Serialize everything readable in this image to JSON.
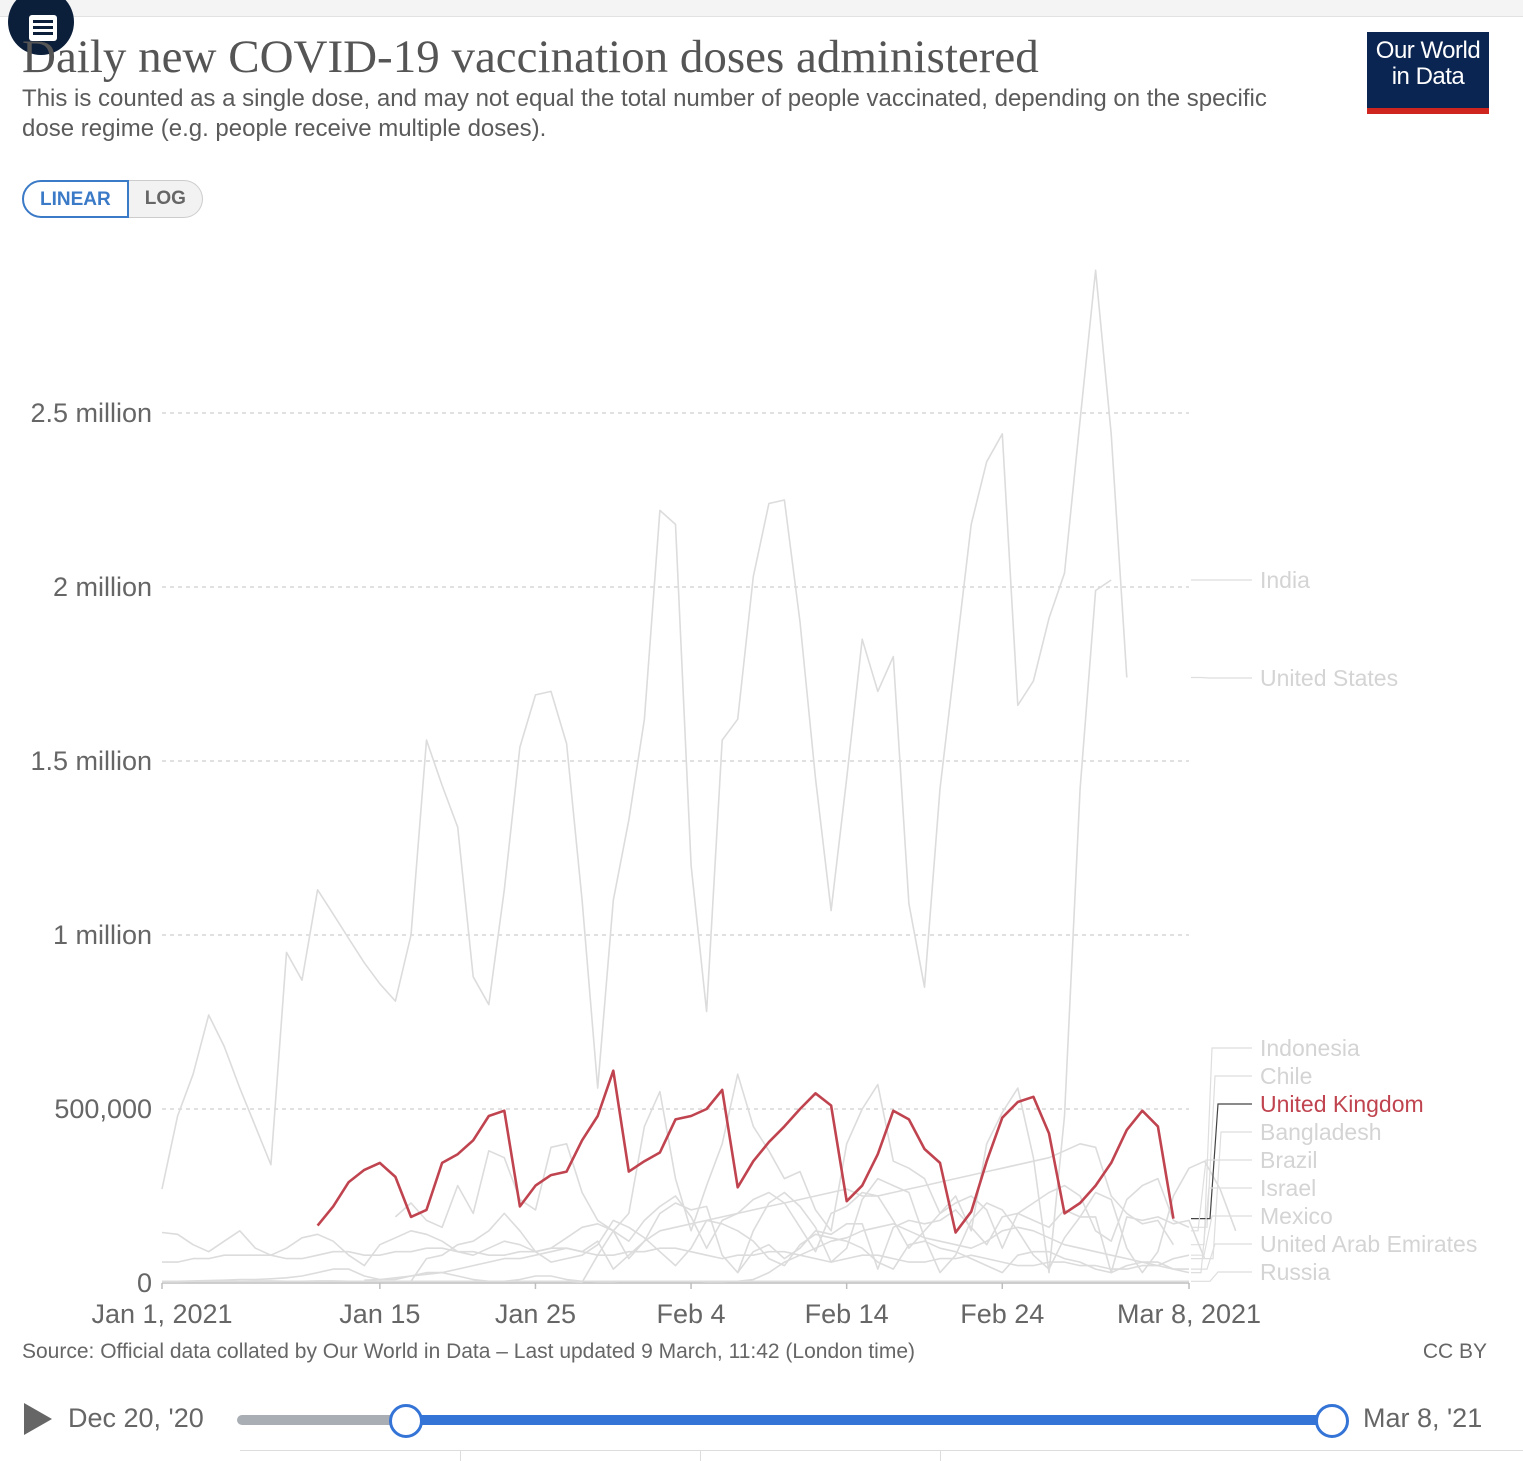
{
  "header": {
    "title": "Daily new COVID-19 vaccination doses administered",
    "subtitle": "This is counted as a single dose, and may not equal the total number of people vaccinated, depending on the specific dose regime (e.g. people receive multiple doses).",
    "logo_line1": "Our World",
    "logo_line2": "in Data",
    "toc_icon": "list-icon"
  },
  "scale_toggle": {
    "linear": "LINEAR",
    "log": "LOG",
    "selected": "LINEAR"
  },
  "footer": {
    "source": "Source: Official data collated by Our World in Data – Last updated 9 March, 11:42 (London time)",
    "license": "CC BY"
  },
  "timeline": {
    "start_label": "Dec 20, '20",
    "end_label": "Mar 8, '21",
    "play_icon": "play-icon",
    "selection_start": "Jan 1, 2021",
    "selection_end": "Mar 8, 2021"
  },
  "colors": {
    "highlight": "#c0444f",
    "muted": "#dcdcdc",
    "label_muted": "#d4d4d4",
    "accent": "#3474d6"
  },
  "chart_data": {
    "type": "line",
    "title": "Daily new COVID-19 vaccination doses administered",
    "x_axis": {
      "range": [
        "2021-01-01",
        "2021-03-08"
      ],
      "ticks": [
        {
          "date": "2021-01-01",
          "label": "Jan 1, 2021"
        },
        {
          "date": "2021-01-15",
          "label": "Jan 15"
        },
        {
          "date": "2021-01-25",
          "label": "Jan 25"
        },
        {
          "date": "2021-02-04",
          "label": "Feb 4"
        },
        {
          "date": "2021-02-14",
          "label": "Feb 14"
        },
        {
          "date": "2021-02-24",
          "label": "Feb 24"
        },
        {
          "date": "2021-03-08",
          "label": "Mar 8, 2021"
        }
      ]
    },
    "y_axis": {
      "range": [
        0,
        2900000
      ],
      "ticks": [
        {
          "value": 0,
          "label": "0"
        },
        {
          "value": 500000,
          "label": "500,000"
        },
        {
          "value": 1000000,
          "label": "1 million"
        },
        {
          "value": 1500000,
          "label": "1.5 million"
        },
        {
          "value": 2000000,
          "label": "2 million"
        },
        {
          "value": 2500000,
          "label": "2.5 million"
        }
      ]
    },
    "grid": true,
    "legend": "right, labels at line ends",
    "highlighted": "United Kingdom",
    "series": [
      {
        "name": "India",
        "start": "2021-01-16",
        "values": [
          190000,
          230000,
          180000,
          160000,
          280000,
          200000,
          380000,
          360000,
          240000,
          210000,
          390000,
          400000,
          260000,
          180000,
          150000,
          200000,
          450000,
          550000,
          300000,
          150000,
          280000,
          400000,
          600000,
          450000,
          380000,
          300000,
          320000,
          210000,
          150000,
          400000,
          500000,
          570000,
          350000,
          330000,
          300000,
          200000,
          250000,
          150000,
          400000,
          490000,
          560000,
          360000,
          30000,
          480000,
          1420000,
          1990000,
          2020000
        ]
      },
      {
        "name": "United States",
        "start": "2021-01-01",
        "values": [
          270000,
          480000,
          600000,
          770000,
          680000,
          560000,
          450000,
          340000,
          950000,
          870000,
          1130000,
          1060000,
          990000,
          920000,
          860000,
          810000,
          1000000,
          1560000,
          1430000,
          1310000,
          880000,
          800000,
          1130000,
          1540000,
          1690000,
          1700000,
          1550000,
          1100000,
          560000,
          1100000,
          1330000,
          1620000,
          2220000,
          2180000,
          1200000,
          780000,
          1560000,
          1620000,
          2030000,
          2240000,
          2250000,
          1900000,
          1450000,
          1070000,
          1450000,
          1850000,
          1700000,
          1800000,
          1090000,
          850000,
          1420000,
          1800000,
          2180000,
          2360000,
          2440000,
          1660000,
          1730000,
          1910000,
          2040000,
          2480000,
          2910000,
          2440000,
          1740000
        ]
      },
      {
        "name": "Indonesia",
        "start": "2021-01-14",
        "values": [
          8000,
          10000,
          15000,
          20000,
          25000,
          30000,
          40000,
          50000,
          60000,
          70000,
          70000,
          80000,
          90000,
          100000,
          90000,
          120000,
          40000,
          80000,
          120000,
          150000,
          160000,
          170000,
          180000,
          190000,
          200000,
          210000,
          220000,
          230000,
          240000,
          250000,
          260000,
          270000,
          250000,
          250000,
          260000,
          270000,
          280000,
          290000,
          300000,
          310000,
          320000,
          330000,
          340000,
          350000,
          360000,
          380000,
          400000,
          390000,
          250000,
          200000,
          170000,
          180000,
          110000
        ]
      },
      {
        "name": "Chile",
        "start": "2021-01-01",
        "values": [
          3000,
          3000,
          4000,
          4000,
          4000,
          5000,
          6000,
          6000,
          5000,
          5000,
          6000,
          6000,
          5000,
          5000,
          5000,
          5000,
          5000,
          5000,
          5000,
          5000,
          5000,
          5000,
          5000,
          5000,
          5000,
          5000,
          4000,
          2000,
          80000,
          150000,
          120000,
          180000,
          220000,
          250000,
          190000,
          100000,
          180000,
          200000,
          240000,
          260000,
          230000,
          160000,
          90000,
          200000,
          220000,
          260000,
          250000,
          180000,
          100000,
          150000,
          200000,
          230000,
          250000,
          210000,
          100000,
          200000,
          230000,
          260000,
          280000,
          250000,
          150000,
          120000,
          240000,
          280000,
          300000,
          180000,
          160000
        ]
      },
      {
        "name": "United Kingdom",
        "start": "2021-01-11",
        "values": [
          165000,
          220000,
          290000,
          325000,
          345000,
          305000,
          190000,
          210000,
          345000,
          370000,
          410000,
          480000,
          495000,
          220000,
          280000,
          310000,
          320000,
          410000,
          480000,
          610000,
          320000,
          350000,
          375000,
          470000,
          480000,
          500000,
          555000,
          275000,
          350000,
          405000,
          450000,
          500000,
          545000,
          510000,
          235000,
          280000,
          370000,
          495000,
          470000,
          385000,
          345000,
          145000,
          205000,
          350000,
          475000,
          520000,
          535000,
          430000,
          200000,
          230000,
          280000,
          345000,
          440000,
          495000,
          450000,
          185000
        ]
      },
      {
        "name": "Bangladesh",
        "start": "2021-02-07",
        "values": [
          30000,
          90000,
          110000,
          70000,
          100000,
          150000,
          140000,
          170000,
          170000,
          40000,
          160000,
          180000,
          170000,
          180000,
          210000,
          160000,
          110000,
          190000,
          200000,
          180000,
          160000,
          210000,
          190000,
          190000,
          30000,
          190000,
          180000,
          190000,
          170000,
          180000,
          70000
        ]
      },
      {
        "name": "Brazil",
        "start": "2021-01-17",
        "values": [
          5000,
          70000,
          80000,
          110000,
          120000,
          150000,
          200000,
          150000,
          90000,
          100000,
          130000,
          160000,
          170000,
          150000,
          70000,
          120000,
          200000,
          230000,
          210000,
          220000,
          80000,
          30000,
          150000,
          230000,
          260000,
          220000,
          160000,
          60000,
          100000,
          240000,
          300000,
          280000,
          260000,
          130000,
          30000,
          80000,
          180000,
          230000,
          210000,
          150000,
          80000,
          40000,
          130000,
          190000,
          260000,
          240000,
          100000,
          30000,
          90000,
          250000,
          330000,
          350000,
          270000,
          150000
        ]
      },
      {
        "name": "Israel",
        "start": "2021-01-01",
        "values": [
          145000,
          140000,
          110000,
          90000,
          120000,
          150000,
          100000,
          80000,
          100000,
          130000,
          140000,
          120000,
          80000,
          50000,
          110000,
          130000,
          150000,
          140000,
          120000,
          90000,
          80000,
          100000,
          120000,
          110000,
          90000,
          60000,
          70000,
          80000,
          110000,
          180000,
          160000,
          130000,
          90000,
          50000,
          100000,
          180000,
          170000,
          150000,
          120000,
          70000,
          50000,
          110000,
          140000,
          130000,
          120000,
          100000,
          60000,
          40000,
          110000,
          120000,
          100000,
          90000,
          70000,
          50000,
          30000,
          80000,
          90000,
          90000,
          70000,
          60000,
          40000,
          30000,
          50000,
          60000,
          60000,
          40000,
          30000
        ]
      },
      {
        "name": "Mexico",
        "start": "2021-01-01",
        "values": [
          5000,
          5000,
          6000,
          7000,
          8000,
          10000,
          10000,
          12000,
          15000,
          20000,
          30000,
          40000,
          40000,
          20000,
          10000,
          10000,
          20000,
          30000,
          30000,
          20000,
          10000,
          5000,
          5000,
          10000,
          20000,
          20000,
          10000,
          5000,
          3000,
          3000,
          5000,
          5000,
          5000,
          5000,
          5000,
          3000,
          3000,
          5000,
          10000,
          30000,
          60000,
          80000,
          100000,
          120000,
          130000,
          150000,
          160000,
          170000,
          150000,
          130000,
          120000,
          110000,
          100000,
          120000,
          150000,
          160000,
          150000,
          130000,
          110000,
          100000,
          90000,
          80000,
          70000,
          60000,
          50000,
          70000,
          80000
        ]
      },
      {
        "name": "United Arab Emirates",
        "start": "2021-01-01",
        "values": [
          60000,
          60000,
          70000,
          70000,
          80000,
          80000,
          80000,
          80000,
          70000,
          70000,
          80000,
          90000,
          90000,
          80000,
          80000,
          90000,
          90000,
          100000,
          100000,
          90000,
          90000,
          80000,
          80000,
          90000,
          90000,
          100000,
          100000,
          90000,
          80000,
          80000,
          90000,
          90000,
          100000,
          100000,
          90000,
          80000,
          70000,
          80000,
          80000,
          90000,
          90000,
          80000,
          70000,
          60000,
          70000,
          80000,
          80000,
          70000,
          60000,
          60000,
          70000,
          70000,
          80000,
          70000,
          60000,
          50000,
          50000,
          60000,
          60000,
          50000,
          50000,
          40000,
          40000,
          50000,
          50000,
          40000,
          40000
        ]
      },
      {
        "name": "Russia",
        "start": "2021-01-01",
        "values": [
          5000,
          5000,
          5000,
          5000,
          5000,
          5000,
          5000,
          5000,
          5000,
          5000,
          5000,
          5000,
          5000,
          5000,
          5000,
          5000,
          5000,
          5000,
          5000,
          5000,
          5000,
          5000,
          5000,
          5000,
          5000,
          5000,
          5000,
          5000,
          5000,
          5000,
          5000,
          5000,
          5000,
          5000,
          5000,
          5000,
          5000,
          5000,
          5000,
          5000,
          5000,
          5000,
          5000,
          5000,
          5000,
          5000,
          5000,
          5000,
          5000,
          5000,
          5000,
          5000,
          5000,
          5000,
          5000,
          5000,
          5000,
          5000,
          5000,
          5000,
          5000,
          5000,
          5000,
          5000,
          5000,
          5000,
          5000
        ]
      }
    ]
  }
}
